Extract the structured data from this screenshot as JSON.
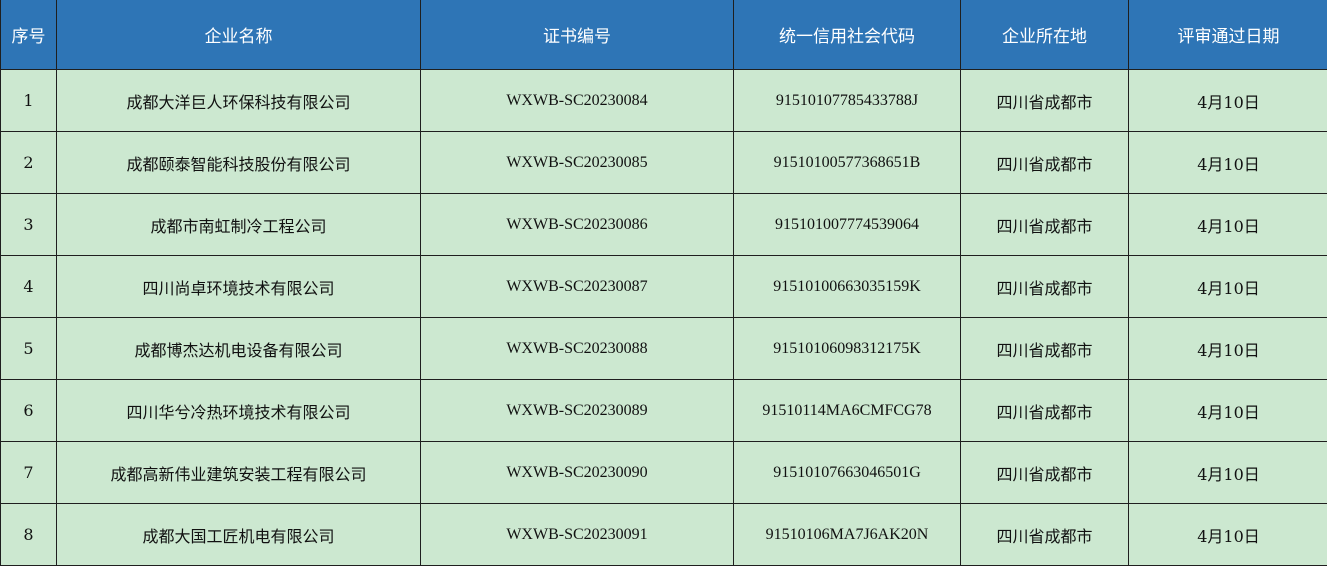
{
  "headers": [
    "序号",
    "企业名称",
    "证书编号",
    "统一信用社会代码",
    "企业所在地",
    "评审通过日期"
  ],
  "rows": [
    [
      "1",
      "成都大洋巨人环保科技有限公司",
      "WXWB-SC20230084",
      "91510107785433788J",
      "四川省成都市",
      "4月10日"
    ],
    [
      "2",
      "成都颐泰智能科技股份有限公司",
      "WXWB-SC20230085",
      "91510100577368651B",
      "四川省成都市",
      "4月10日"
    ],
    [
      "3",
      "成都市南虹制冷工程公司",
      "WXWB-SC20230086",
      "915101007774539064",
      "四川省成都市",
      "4月10日"
    ],
    [
      "4",
      "四川尚卓环境技术有限公司",
      "WXWB-SC20230087",
      "91510100663035159K",
      "四川省成都市",
      "4月10日"
    ],
    [
      "5",
      "成都博杰达机电设备有限公司",
      "WXWB-SC20230088",
      "91510106098312175K",
      "四川省成都市",
      "4月10日"
    ],
    [
      "6",
      "四川华兮冷热环境技术有限公司",
      "WXWB-SC20230089",
      "91510114MA6CMFCG78",
      "四川省成都市",
      "4月10日"
    ],
    [
      "7",
      "成都高新伟业建筑安装工程有限公司",
      "WXWB-SC20230090",
      "91510107663046501G",
      "四川省成都市",
      "4月10日"
    ],
    [
      "8",
      "成都大国工匠机电有限公司",
      "WXWB-SC20230091",
      "91510106MA7J6AK20N",
      "四川省成都市",
      "4月10日"
    ]
  ]
}
